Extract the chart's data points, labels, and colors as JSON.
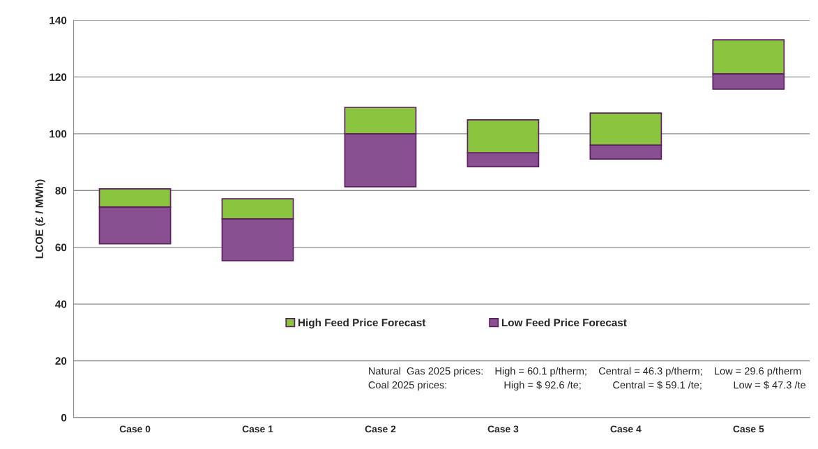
{
  "chart_data": {
    "type": "bar",
    "ylabel": "LCOE (£ / MWh)",
    "categories": [
      "Case 0",
      "Case 1",
      "Case 2",
      "Case 3",
      "Case 4",
      "Case 5"
    ],
    "series": [
      {
        "name": "Low Feed Price Forecast",
        "color": "#87508f",
        "base": [
          61.2,
          55.3,
          81.3,
          88.4,
          91.1,
          115.7
        ],
        "values": [
          13.0,
          14.7,
          18.7,
          4.9,
          4.9,
          5.4
        ]
      },
      {
        "name": "High Feed Price Forecast",
        "color": "#8bc53f",
        "base": [
          74.2,
          70.0,
          100.0,
          93.3,
          96.0,
          121.1
        ],
        "values": [
          6.4,
          7.1,
          9.3,
          11.6,
          11.3,
          12.0
        ]
      }
    ],
    "ylim": [
      0,
      140
    ],
    "yticks": [
      0,
      20,
      40,
      60,
      80,
      100,
      120,
      140
    ],
    "grid": "y",
    "legend": "bottom",
    "annotations": [
      "Natural  Gas 2025 prices:    High = 60.1 p/therm;    Central = 46.3 p/therm;    Low = 29.6 p/therm",
      "Coal 2025 prices:                    High = $ 92.6 /te;           Central = $ 59.1 /te;           Low = $ 47.3 /te"
    ]
  }
}
